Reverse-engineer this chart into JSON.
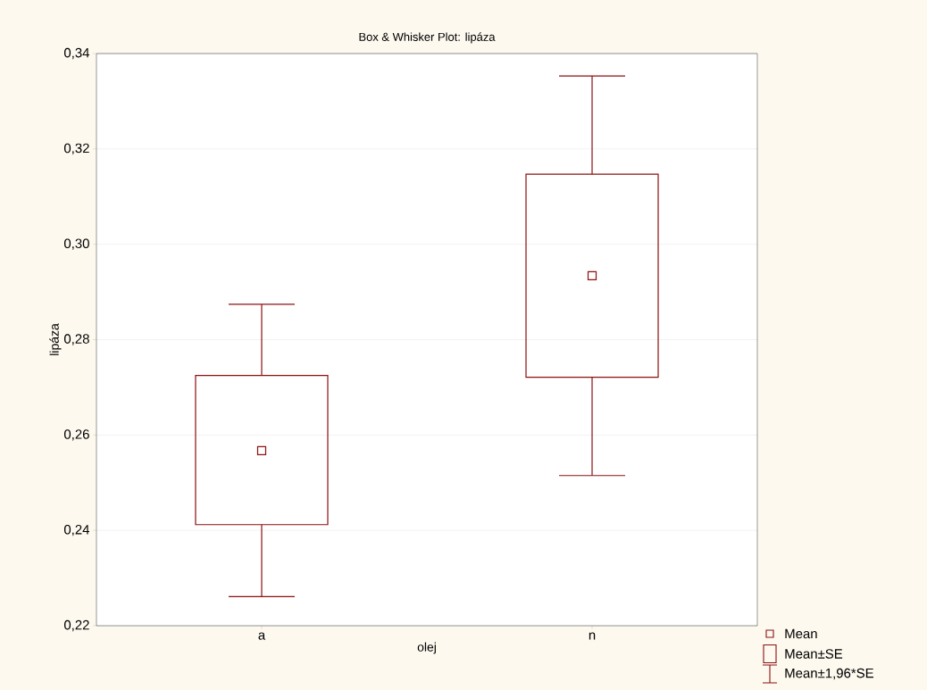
{
  "chart_data": {
    "type": "box",
    "title": "Box & Whisker Plot:  lipáza",
    "xlabel": "olej",
    "ylabel": "lipáza",
    "categories": [
      "a",
      "n"
    ],
    "boxes": [
      {
        "low": 0.2261,
        "q1": 0.2412,
        "q3": 0.2725,
        "high": 0.2874,
        "mean": 0.2567
      },
      {
        "low": 0.2515,
        "q1": 0.2721,
        "q3": 0.3147,
        "high": 0.3353,
        "mean": 0.2934
      }
    ],
    "color": "#8b1010",
    "ylim": [
      0.22,
      0.34
    ],
    "yticks": [
      {
        "value": 0.22,
        "label": "0,22"
      },
      {
        "value": 0.24,
        "label": "0,24"
      },
      {
        "value": 0.26,
        "label": "0,26"
      },
      {
        "value": 0.28,
        "label": "0,28"
      },
      {
        "value": 0.3,
        "label": "0,30"
      },
      {
        "value": 0.32,
        "label": "0,32"
      },
      {
        "value": 0.34,
        "label": "0,34"
      }
    ],
    "grid": "y",
    "annotations": [
      "Mean",
      "Mean±SE",
      "Mean±1,96*SE"
    ]
  }
}
